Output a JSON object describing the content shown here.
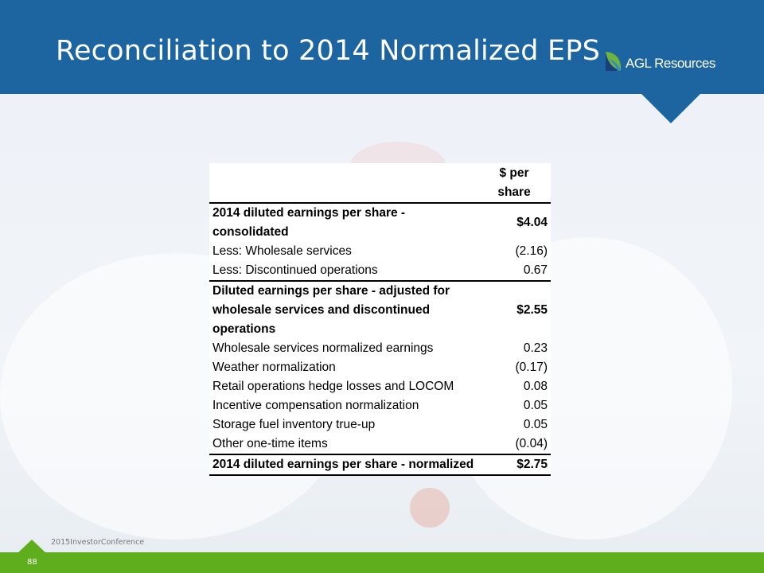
{
  "header": {
    "title": "Reconciliation to 2014 Normalized EPS",
    "logo_text": "AGL Resources"
  },
  "table": {
    "column_header": "$ per share",
    "rows": [
      {
        "label": "2014 diluted earnings per share - consolidated",
        "value": "$4.04",
        "bold": true
      },
      {
        "label": "Less: Wholesale services",
        "value": "(2.16)"
      },
      {
        "label": "Less: Discontinued operations",
        "value": "0.67"
      },
      {
        "label": "Diluted earnings per share - adjusted for wholesale services and discontinued operations",
        "value": "$2.55",
        "bold": true
      },
      {
        "label": "Wholesale services normalized earnings",
        "value": "0.23"
      },
      {
        "label": "Weather normalization",
        "value": "(0.17)"
      },
      {
        "label": "Retail operations hedge losses and LOCOM",
        "value": "0.08"
      },
      {
        "label": "Incentive compensation normalization",
        "value": "0.05"
      },
      {
        "label": "Storage fuel inventory true-up",
        "value": "0.05"
      },
      {
        "label": "Other one-time items",
        "value": "(0.04)"
      },
      {
        "label": "2014 diluted earnings per share - normalized",
        "value": "$2.75",
        "bold": true
      }
    ]
  },
  "footer": {
    "conference": "2015InvestorConference",
    "page_number": "88"
  },
  "colors": {
    "header": "#1c65a0",
    "footer": "#5fae1e"
  }
}
